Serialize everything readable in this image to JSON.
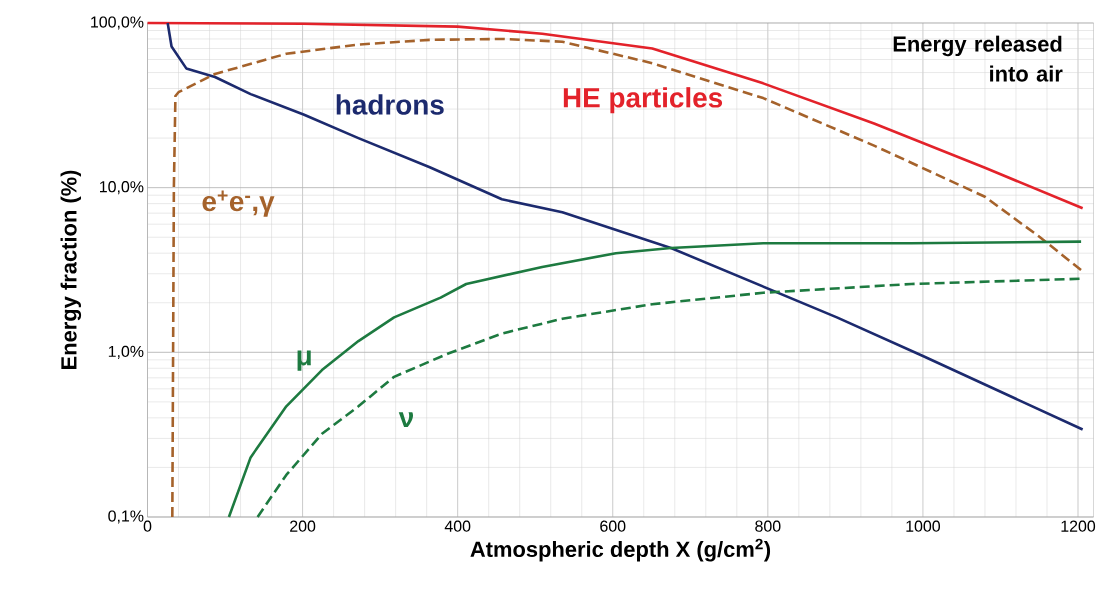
{
  "chart_data": {
    "type": "line",
    "xlabel": "Atmospheric depth X (g/cm$^{2}$)",
    "ylabel": "Energy fraction (%)",
    "log": "y",
    "xlim": [
      0,
      1220
    ],
    "xticks": [
      0,
      200,
      400,
      600,
      800,
      1000,
      1200
    ],
    "ylim": [
      0.1,
      100
    ],
    "yticks": [
      {
        "value": 0.1,
        "label": "0,1%"
      },
      {
        "value": 1,
        "label": "1,0%"
      },
      {
        "value": 10,
        "label": "10,0%"
      },
      {
        "value": 100,
        "label": "100,0%"
      }
    ],
    "grid": true,
    "annotations": [
      "Energy released into air"
    ],
    "series": [
      {
        "name": "HE particles",
        "color": "#e3222a",
        "line_style": "solid",
        "x": [
          0,
          200,
          400,
          509,
          651,
          794,
          937,
          1080,
          1206
        ],
        "values": [
          100,
          99,
          95,
          86,
          70,
          43,
          24.5,
          13.2,
          7.5
        ]
      },
      {
        "name": "hadrons",
        "color": "#1c2a6e",
        "line_style": "solid",
        "x": [
          26,
          31,
          50,
          87,
          133,
          202,
          272,
          364,
          457,
          535,
          675,
          889,
          1000,
          1206
        ],
        "values": [
          100,
          72,
          53,
          47,
          37,
          27.7,
          20,
          13.3,
          8.5,
          7.1,
          4.3,
          1.63,
          0.95,
          0.34
        ]
      },
      {
        "name": "e$^{+}$e$^{-}$,γ",
        "color": "#a5622b",
        "line_style": "dashed",
        "x": [
          32,
          34,
          36,
          40,
          87,
          179,
          272,
          364,
          457,
          535,
          651,
          794,
          937,
          1080,
          1151,
          1206
        ],
        "values": [
          0.1,
          10,
          36,
          38,
          49,
          65,
          74,
          79,
          80,
          77,
          57,
          35,
          18,
          8.8,
          5.0,
          3.1
        ]
      },
      {
        "name": "μ",
        "color": "#1d7a40",
        "line_style": "solid",
        "x": [
          105,
          133,
          179,
          225,
          272,
          318,
          378,
          411,
          509,
          604,
          675,
          794,
          985,
          1204
        ],
        "values": [
          0.1,
          0.23,
          0.47,
          0.78,
          1.17,
          1.63,
          2.15,
          2.6,
          3.3,
          4.0,
          4.3,
          4.6,
          4.6,
          4.7
        ]
      },
      {
        "name": "ν",
        "color": "#1d7a40",
        "line_style": "dashed",
        "x": [
          142,
          179,
          225,
          272,
          318,
          387,
          457,
          535,
          651,
          794,
          985,
          1206
        ],
        "values": [
          0.1,
          0.18,
          0.32,
          0.47,
          0.71,
          0.98,
          1.3,
          1.6,
          1.96,
          2.3,
          2.6,
          2.8
        ]
      }
    ]
  }
}
